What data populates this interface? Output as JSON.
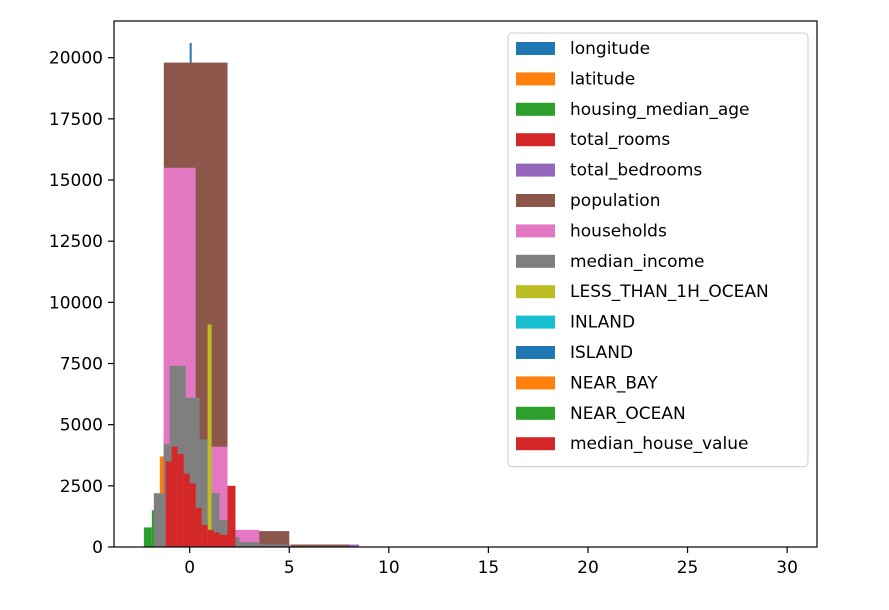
{
  "chart_data": {
    "type": "histogram",
    "title": "",
    "xlabel": "",
    "ylabel": "",
    "xlim": [
      -3.8,
      31.5
    ],
    "ylim": [
      0,
      21500
    ],
    "xticks": [
      0,
      5,
      10,
      15,
      20,
      25,
      30
    ],
    "xtick_labels": [
      "0",
      "5",
      "10",
      "15",
      "20",
      "25",
      "30"
    ],
    "yticks": [
      0,
      2500,
      5000,
      7500,
      10000,
      12500,
      15000,
      17500,
      20000
    ],
    "ytick_labels": [
      "0",
      "2500",
      "5000",
      "7500",
      "10000",
      "12500",
      "15000",
      "17500",
      "20000"
    ],
    "grid": false,
    "legend_position": "top-right",
    "series": [
      {
        "name": "longitude",
        "color": "#1f77b4",
        "bins": [
          [
            -2.4,
            -2.0,
            0
          ],
          [
            -2.0,
            -1.5,
            100
          ],
          [
            -1.5,
            -1.3,
            1500
          ],
          [
            -1.3,
            -1.1,
            4500
          ],
          [
            -1.1,
            -0.5,
            400
          ],
          [
            -0.5,
            0.0,
            200
          ],
          [
            0.0,
            0.1,
            20600
          ],
          [
            0.1,
            0.7,
            300
          ],
          [
            0.7,
            1.0,
            3500
          ],
          [
            1.0,
            1.2,
            4900
          ],
          [
            1.2,
            2.5,
            100
          ]
        ]
      },
      {
        "name": "latitude",
        "color": "#ff7f0e",
        "bins": [
          [
            -1.5,
            -1.0,
            3700
          ],
          [
            -1.0,
            -0.2,
            3600
          ],
          [
            -0.2,
            0.0,
            18300
          ],
          [
            0.0,
            0.6,
            2000
          ],
          [
            0.6,
            1.0,
            6600
          ],
          [
            1.0,
            1.3,
            1200
          ],
          [
            1.3,
            2.6,
            400
          ]
        ]
      },
      {
        "name": "housing_median_age",
        "color": "#2ca02c",
        "bins": [
          [
            -2.3,
            -1.9,
            800
          ],
          [
            -1.9,
            -1.2,
            1500
          ],
          [
            -1.2,
            -0.1,
            6200
          ],
          [
            -0.1,
            0.1,
            18000
          ],
          [
            0.1,
            1.4,
            3900
          ],
          [
            1.4,
            1.9,
            1800
          ],
          [
            1.9,
            2.3,
            700
          ]
        ]
      },
      {
        "name": "total_rooms",
        "color": "#d62728",
        "bins": [
          [
            -1.2,
            -0.7,
            3600
          ],
          [
            -0.7,
            -0.1,
            3500
          ],
          [
            -0.1,
            0.6,
            1600
          ],
          [
            0.6,
            1.2,
            600
          ],
          [
            1.2,
            2.2,
            300
          ],
          [
            2.2,
            8.2,
            100
          ]
        ]
      },
      {
        "name": "total_bedrooms",
        "color": "#9467bd",
        "bins": [
          [
            -1.3,
            -0.6,
            3300
          ],
          [
            -0.6,
            0.2,
            3000
          ],
          [
            0.2,
            0.9,
            1400
          ],
          [
            0.9,
            2.0,
            600
          ],
          [
            2.0,
            8.5,
            100
          ]
        ]
      },
      {
        "name": "population",
        "color": "#8c564b",
        "bins": [
          [
            -1.3,
            1.9,
            19800
          ],
          [
            1.9,
            5.0,
            650
          ],
          [
            5.0,
            8.0,
            100
          ]
        ]
      },
      {
        "name": "households",
        "color": "#e377c2",
        "bins": [
          [
            -1.3,
            0.3,
            15500
          ],
          [
            0.3,
            1.9,
            4100
          ],
          [
            1.9,
            3.5,
            700
          ],
          [
            3.5,
            5.1,
            100
          ]
        ]
      },
      {
        "name": "median_income",
        "color": "#7f7f7f",
        "bins": [
          [
            -1.8,
            -1.3,
            2200
          ],
          [
            -1.3,
            -1.0,
            4200
          ],
          [
            -1.0,
            -0.2,
            7400
          ],
          [
            -0.2,
            0.5,
            6100
          ],
          [
            0.5,
            1.0,
            4400
          ],
          [
            1.0,
            1.5,
            2200
          ],
          [
            1.5,
            2.0,
            1100
          ],
          [
            2.0,
            2.5,
            400
          ],
          [
            2.5,
            3.5,
            200
          ],
          [
            3.5,
            5.0,
            100
          ]
        ]
      },
      {
        "name": "LESS_THAN_1H_OCEAN",
        "color": "#bcbd22",
        "bins": [
          [
            -1.0,
            0.9,
            0
          ],
          [
            0.9,
            1.1,
            9100
          ]
        ]
      },
      {
        "name": "INLAND",
        "color": "#17becf",
        "bins": [
          [
            -0.8,
            -0.6,
            0
          ],
          [
            1.4,
            1.6,
            0
          ]
        ]
      },
      {
        "name": "ISLAND",
        "color": "#1f77b4",
        "bins": [
          [
            -0.1,
            0.1,
            0
          ]
        ]
      },
      {
        "name": "NEAR_BAY",
        "color": "#ff7f0e",
        "bins": [
          [
            -0.4,
            -0.2,
            0
          ]
        ]
      },
      {
        "name": "NEAR_OCEAN",
        "color": "#2ca02c",
        "bins": [
          [
            -0.4,
            -0.2,
            0
          ]
        ]
      },
      {
        "name": "median_house_value",
        "color": "#d62728",
        "bins": [
          [
            -1.2,
            -0.9,
            3500
          ],
          [
            -0.9,
            -0.6,
            4100
          ],
          [
            -0.6,
            -0.3,
            3800
          ],
          [
            -0.3,
            0.0,
            3000
          ],
          [
            0.0,
            0.3,
            2600
          ],
          [
            0.3,
            0.6,
            1600
          ],
          [
            0.6,
            0.9,
            900
          ],
          [
            0.9,
            1.2,
            700
          ],
          [
            1.2,
            1.5,
            600
          ],
          [
            1.5,
            1.9,
            500
          ],
          [
            1.9,
            2.3,
            2500
          ]
        ]
      }
    ]
  }
}
